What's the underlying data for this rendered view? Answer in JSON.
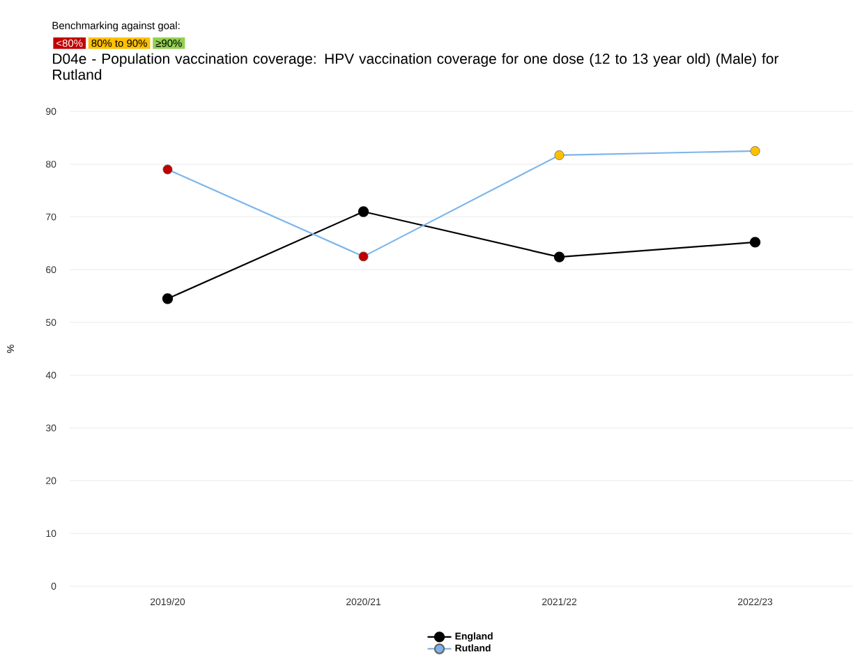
{
  "chart_data": {
    "type": "line",
    "title": "D04e - Population vaccination coverage: HPV vaccination coverage for one dose (12 to 13 year old) (Male) for Rutland",
    "subtitle": "Benchmarking against goal:",
    "annotations": [
      "<80%",
      "80% to 90%",
      "≥90%"
    ],
    "categories": [
      "2019/20",
      "2020/21",
      "2021/22",
      "2022/23"
    ],
    "ylabel": "%",
    "ylim": [
      0,
      90
    ],
    "yticks": [
      0,
      10,
      20,
      30,
      40,
      50,
      60,
      70,
      80,
      90
    ],
    "grid": "y",
    "legend": "bottom",
    "marker": "circle",
    "series": [
      {
        "name": "England",
        "color": "#000000",
        "values": [
          54.5,
          71.0,
          62.4,
          65.2
        ]
      },
      {
        "name": "Rutland",
        "color": "#7cb5ec",
        "colors": [
          "#c00000",
          "#c00000",
          "#ffc000",
          "#ffc000"
        ],
        "values": [
          79.0,
          62.5,
          81.7,
          82.5
        ]
      }
    ]
  }
}
